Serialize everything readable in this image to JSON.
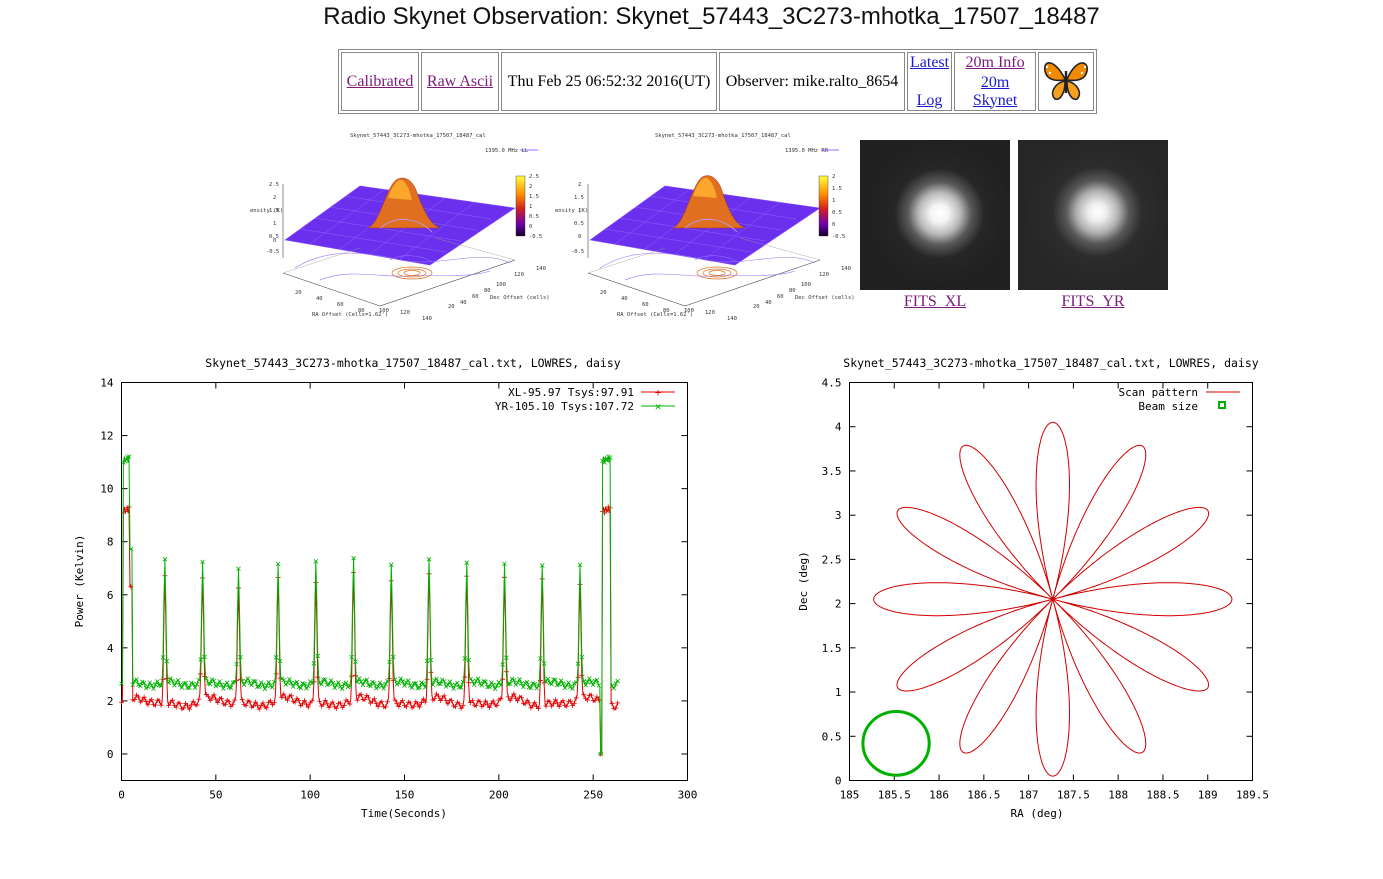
{
  "page": {
    "title": "Radio Skynet Observation: Skynet_57443_3C273-mhotka_17507_18487"
  },
  "nav": {
    "calibrated": "Calibrated",
    "raw_ascii": "Raw Ascii",
    "date": "Thu Feb 25 06:52:32 2016(UT)",
    "observer": "Observer: mike.ralto_8654",
    "latest": "Latest",
    "log": "Log",
    "info_20m": "20m Info",
    "skynet_20m": "20m Skynet"
  },
  "thumbs": {
    "left_title": "Skynet_57443_3C273-mhotka_17507_18487_cal",
    "left_legend": "1395.0 MHz LL",
    "right_title": "Skynet_57443_3C273-mhotka_17507_18487_cal",
    "right_legend": "1395.0 MHz RR",
    "zlabel": "ensity (K)",
    "xlabel": "RA Offset (Cells=1.62')",
    "ylabel": "Dec Offset (cells)",
    "left_colorbar": [
      "2.5",
      "2",
      "1.5",
      "1",
      "0.5",
      "0",
      "-0.5"
    ],
    "right_colorbar": [
      "2",
      "1.5",
      "1",
      "0.5",
      "0",
      "-0.5"
    ],
    "left_zticks": [
      "2.5",
      "2",
      "1.5",
      "1",
      "0.5",
      "0",
      "-0.5"
    ],
    "right_zticks": [
      "2",
      "1.5",
      "1",
      "0.5",
      "0",
      "-0.5"
    ],
    "ra_ticks": [
      "20",
      "40",
      "60",
      "80",
      "100",
      "120",
      "140"
    ],
    "dec_ticks": [
      "20",
      "40",
      "60",
      "80",
      "100",
      "120",
      "140"
    ]
  },
  "fits": {
    "xl_label": "FITS_XL",
    "yr_label": "FITS_YR"
  },
  "colors": {
    "xl": "#e00000",
    "yr": "#00b000",
    "scan": "#d00000",
    "beam": "#00b000",
    "link": "#7a1a7a"
  },
  "chart_data": [
    {
      "type": "line",
      "title": "Skynet_57443_3C273-mhotka_17507_18487_cal.txt, LOWRES, daisy",
      "xlabel": "Time(Seconds)",
      "ylabel": "Power (Kelvin)",
      "xlim": [
        0,
        300
      ],
      "ylim": [
        -1,
        14
      ],
      "xticks": [
        0,
        50,
        100,
        150,
        200,
        250,
        300
      ],
      "yticks": [
        0,
        2,
        4,
        6,
        8,
        10,
        12,
        14
      ],
      "legend_position": "top-right",
      "series": [
        {
          "name": "XL-95.97 Tsys:97.91",
          "baseline": 1.95,
          "cal_level": 9.2,
          "peak_times": [
            23,
            43,
            62,
            83,
            103,
            123,
            143,
            163,
            183,
            203,
            223,
            243
          ],
          "peak_values": [
            6.6,
            6.6,
            6.4,
            6.5,
            6.6,
            6.6,
            6.7,
            6.6,
            6.8,
            6.6,
            6.6,
            6.4
          ],
          "cal_start": [
            0,
            4
          ],
          "cal_end": [
            254,
            259
          ],
          "end_time": 263
        },
        {
          "name": "YR-105.10 Tsys:107.72",
          "baseline": 2.65,
          "cal_level": 11.1,
          "peak_times": [
            23,
            43,
            62,
            83,
            103,
            123,
            143,
            163,
            183,
            203,
            223,
            243
          ],
          "peak_values": [
            7.2,
            7.3,
            7.0,
            7.2,
            7.2,
            7.3,
            7.2,
            7.2,
            7.3,
            7.1,
            7.1,
            7.2
          ],
          "cal_start": [
            0,
            4
          ],
          "cal_end": [
            254,
            259
          ],
          "end_time": 263
        }
      ]
    },
    {
      "type": "line",
      "title": "Skynet_57443_3C273-mhotka_17507_18487_cal.txt, LOWRES, daisy",
      "xlabel": "RA (deg)",
      "ylabel": "Dec (deg)",
      "xlim": [
        185,
        189.5
      ],
      "ylim": [
        0,
        4.5
      ],
      "xticks": [
        185,
        185.5,
        186,
        186.5,
        187,
        187.5,
        188,
        188.5,
        189,
        189.5
      ],
      "yticks": [
        0,
        0.5,
        1,
        1.5,
        2,
        2.5,
        3,
        3.5,
        4,
        4.5
      ],
      "legend_position": "top-right",
      "series": [
        {
          "name": "Scan pattern",
          "center": [
            187.27,
            2.05
          ],
          "petals": 12,
          "radius_ra": 2.0,
          "radius_dec": 2.0
        },
        {
          "name": "Beam size",
          "center": [
            185.52,
            0.42
          ],
          "radius_ra": 0.37,
          "radius_dec": 0.36
        }
      ]
    }
  ]
}
